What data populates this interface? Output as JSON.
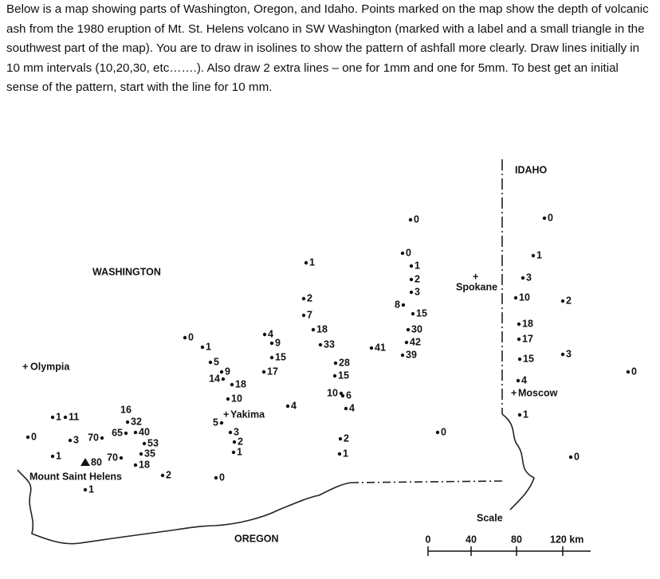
{
  "instructions": "Below is a map showing parts of Washington, Oregon, and Idaho.  Points marked  on the map show the depth of volcanic ash from the 1980 eruption of Mt. St. Helens volcano in SW Washington (marked with a label and a small triangle in the southwest part of the map).  You are to draw in isolines to show the pattern of ashfall more clearly.  Draw lines initially in 10 mm intervals (10,20,30, etc…….).  Also draw 2 extra lines – one for 1mm and one for 5mm. To best get an initial sense of the pattern, start with the line for 10 mm.",
  "labels": {
    "washington": "WASHINGTON",
    "olympia": "Olympia",
    "mount_st_helens": "Mount Saint Helens",
    "yakima": "Yakima",
    "spokane": "Spokane",
    "idaho": "IDAHO",
    "moscow": "Moscow",
    "oregon": "OREGON"
  },
  "scale": {
    "title": "Scale",
    "ticks": [
      "0",
      "40",
      "80",
      "120 km"
    ]
  },
  "points": [
    0,
    0,
    0,
    1,
    2,
    3,
    8,
    15,
    30,
    42,
    39,
    41,
    1,
    2,
    7,
    18,
    33,
    4,
    9,
    15,
    17,
    28,
    15,
    10,
    6,
    4,
    0,
    1,
    5,
    9,
    14,
    18,
    10,
    4,
    5,
    3,
    2,
    1,
    0,
    2,
    1,
    0,
    1,
    3,
    10,
    2,
    18,
    17,
    15,
    3,
    0,
    4,
    1,
    0,
    1,
    11,
    0,
    3,
    1,
    16,
    32,
    65,
    40,
    70,
    53,
    35,
    80,
    70,
    18,
    2,
    1
  ]
}
